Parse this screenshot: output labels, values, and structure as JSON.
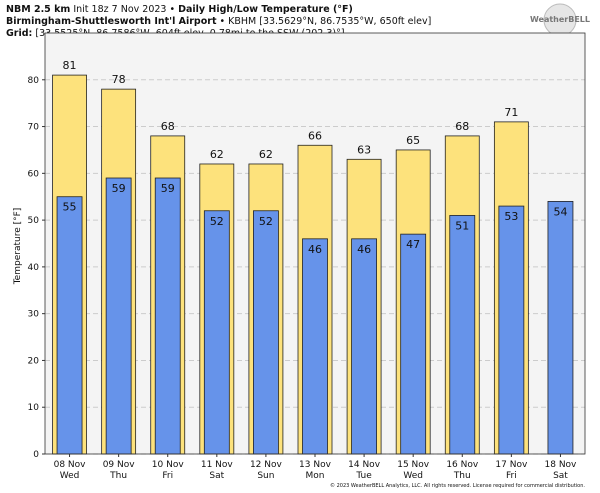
{
  "chart_data": {
    "type": "bar",
    "title": {
      "model": "NBM 2.5 km",
      "init": "Init 18z 7 Nov 2023 •",
      "product": "Daily High/Low Temperature (°F)"
    },
    "station": {
      "name": "Birmingham-Shuttlesworth Int'l Airport",
      "details": "• KBHM [33.5629°N, 86.7535°W, 650ft elev]"
    },
    "grid_point": {
      "label": "Grid:",
      "details": "[33.5525°N, 86.7586°W, 604ft elev, 0.78mi to the SSW (202.3)°]"
    },
    "logo": "WeatherBELL",
    "footer": "© 2023 WeatherBELL Analytics, LLC. All rights reserved. License required for commercial distribution.",
    "y_label": "Temperature [°F]",
    "categories": [
      "08 Nov",
      "09 Nov",
      "10 Nov",
      "11 Nov",
      "12 Nov",
      "13 Nov",
      "14 Nov",
      "15 Nov",
      "16 Nov",
      "17 Nov",
      "18 Nov"
    ],
    "weekdays": [
      "Wed",
      "Thu",
      "Fri",
      "Sat",
      "Sun",
      "Mon",
      "Tue",
      "Wed",
      "Thu",
      "Fri",
      "Sat"
    ],
    "series": [
      {
        "name": "High",
        "color": "#fde27c",
        "values": [
          81,
          78,
          68,
          62,
          62,
          66,
          63,
          65,
          68,
          71,
          null
        ]
      },
      {
        "name": "Low",
        "color": "#6693ea",
        "values": [
          55,
          59,
          59,
          52,
          52,
          46,
          46,
          47,
          51,
          53,
          54
        ]
      }
    ],
    "ylim": [
      0,
      90
    ],
    "yticks": [
      0,
      10,
      20,
      30,
      40,
      50,
      60,
      70,
      80
    ],
    "grid": true
  }
}
